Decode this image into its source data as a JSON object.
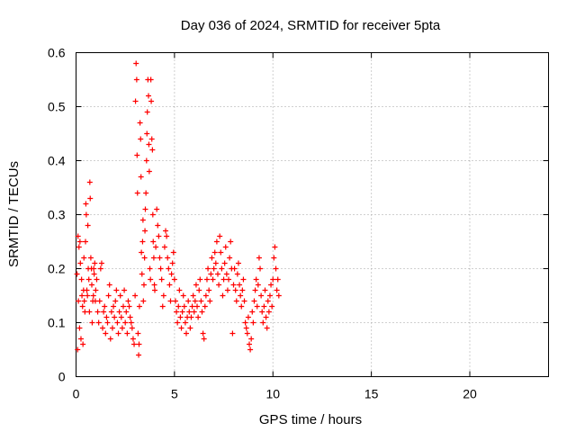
{
  "chart_data": {
    "type": "scatter",
    "title": "Day 036 of 2024, SRMTID for receiver 5pta",
    "xlabel": "GPS time / hours",
    "ylabel": "SRMTID / TECUs",
    "xlim": [
      0,
      24
    ],
    "ylim": [
      0,
      0.6
    ],
    "xticks": [
      0,
      5,
      10,
      15,
      20
    ],
    "xtick_labels": [
      "0",
      "5",
      "10",
      "15",
      "20"
    ],
    "yticks": [
      0,
      0.1,
      0.2,
      0.3,
      0.4,
      0.5,
      0.6
    ],
    "ytick_labels": [
      "0",
      "0.1",
      "0.2",
      "0.3",
      "0.4",
      "0.5",
      "0.6"
    ],
    "grid": true,
    "marker": "+",
    "color": "#ff0000",
    "series": [
      {
        "name": "SRMTID",
        "points": [
          [
            0.05,
            0.19
          ],
          [
            0.08,
            0.05
          ],
          [
            0.1,
            0.26
          ],
          [
            0.12,
            0.14
          ],
          [
            0.15,
            0.24
          ],
          [
            0.18,
            0.09
          ],
          [
            0.2,
            0.25
          ],
          [
            0.22,
            0.21
          ],
          [
            0.25,
            0.07
          ],
          [
            0.28,
            0.18
          ],
          [
            0.3,
            0.15
          ],
          [
            0.33,
            0.13
          ],
          [
            0.35,
            0.06
          ],
          [
            0.38,
            0.16
          ],
          [
            0.4,
            0.22
          ],
          [
            0.42,
            0.14
          ],
          [
            0.45,
            0.12
          ],
          [
            0.48,
            0.25
          ],
          [
            0.5,
            0.32
          ],
          [
            0.52,
            0.3
          ],
          [
            0.55,
            0.16
          ],
          [
            0.58,
            0.15
          ],
          [
            0.6,
            0.28
          ],
          [
            0.62,
            0.2
          ],
          [
            0.65,
            0.18
          ],
          [
            0.68,
            0.12
          ],
          [
            0.7,
            0.36
          ],
          [
            0.72,
            0.33
          ],
          [
            0.75,
            0.22
          ],
          [
            0.78,
            0.2
          ],
          [
            0.8,
            0.17
          ],
          [
            0.82,
            0.1
          ],
          [
            0.85,
            0.14
          ],
          [
            0.88,
            0.15
          ],
          [
            0.9,
            0.2
          ],
          [
            0.92,
            0.19
          ],
          [
            0.95,
            0.21
          ],
          [
            0.98,
            0.14
          ],
          [
            1.0,
            0.16
          ],
          [
            1.05,
            0.18
          ],
          [
            1.1,
            0.12
          ],
          [
            1.15,
            0.1
          ],
          [
            1.2,
            0.14
          ],
          [
            1.25,
            0.2
          ],
          [
            1.3,
            0.21
          ],
          [
            1.35,
            0.09
          ],
          [
            1.4,
            0.12
          ],
          [
            1.45,
            0.13
          ],
          [
            1.5,
            0.08
          ],
          [
            1.55,
            0.11
          ],
          [
            1.6,
            0.1
          ],
          [
            1.65,
            0.15
          ],
          [
            1.7,
            0.17
          ],
          [
            1.75,
            0.07
          ],
          [
            1.8,
            0.12
          ],
          [
            1.85,
            0.09
          ],
          [
            1.9,
            0.13
          ],
          [
            1.95,
            0.11
          ],
          [
            2.0,
            0.14
          ],
          [
            2.05,
            0.16
          ],
          [
            2.1,
            0.1
          ],
          [
            2.15,
            0.08
          ],
          [
            2.2,
            0.12
          ],
          [
            2.25,
            0.15
          ],
          [
            2.3,
            0.11
          ],
          [
            2.35,
            0.09
          ],
          [
            2.4,
            0.13
          ],
          [
            2.45,
            0.16
          ],
          [
            2.5,
            0.1
          ],
          [
            2.55,
            0.12
          ],
          [
            2.6,
            0.08
          ],
          [
            2.65,
            0.14
          ],
          [
            2.7,
            0.13
          ],
          [
            2.75,
            0.11
          ],
          [
            2.8,
            0.1
          ],
          [
            2.85,
            0.09
          ],
          [
            2.9,
            0.07
          ],
          [
            2.95,
            0.06
          ],
          [
            3.0,
            0.15
          ],
          [
            3.02,
            0.51
          ],
          [
            3.05,
            0.58
          ],
          [
            3.08,
            0.55
          ],
          [
            3.1,
            0.41
          ],
          [
            3.12,
            0.34
          ],
          [
            3.15,
            0.08
          ],
          [
            3.18,
            0.04
          ],
          [
            3.2,
            0.06
          ],
          [
            3.22,
            0.13
          ],
          [
            3.25,
            0.47
          ],
          [
            3.28,
            0.44
          ],
          [
            3.3,
            0.37
          ],
          [
            3.32,
            0.23
          ],
          [
            3.35,
            0.19
          ],
          [
            3.38,
            0.25
          ],
          [
            3.4,
            0.29
          ],
          [
            3.42,
            0.14
          ],
          [
            3.45,
            0.17
          ],
          [
            3.48,
            0.22
          ],
          [
            3.5,
            0.27
          ],
          [
            3.52,
            0.31
          ],
          [
            3.55,
            0.34
          ],
          [
            3.58,
            0.4
          ],
          [
            3.6,
            0.45
          ],
          [
            3.62,
            0.49
          ],
          [
            3.65,
            0.55
          ],
          [
            3.68,
            0.52
          ],
          [
            3.7,
            0.43
          ],
          [
            3.72,
            0.38
          ],
          [
            3.75,
            0.2
          ],
          [
            3.78,
            0.18
          ],
          [
            3.8,
            0.55
          ],
          [
            3.82,
            0.51
          ],
          [
            3.85,
            0.44
          ],
          [
            3.88,
            0.42
          ],
          [
            3.9,
            0.3
          ],
          [
            3.92,
            0.25
          ],
          [
            3.95,
            0.22
          ],
          [
            3.98,
            0.17
          ],
          [
            4.0,
            0.16
          ],
          [
            4.05,
            0.24
          ],
          [
            4.1,
            0.31
          ],
          [
            4.15,
            0.28
          ],
          [
            4.2,
            0.26
          ],
          [
            4.25,
            0.22
          ],
          [
            4.3,
            0.2
          ],
          [
            4.35,
            0.18
          ],
          [
            4.4,
            0.13
          ],
          [
            4.45,
            0.15
          ],
          [
            4.5,
            0.24
          ],
          [
            4.55,
            0.27
          ],
          [
            4.6,
            0.26
          ],
          [
            4.65,
            0.22
          ],
          [
            4.7,
            0.2
          ],
          [
            4.75,
            0.17
          ],
          [
            4.8,
            0.14
          ],
          [
            4.85,
            0.19
          ],
          [
            4.9,
            0.21
          ],
          [
            4.95,
            0.23
          ],
          [
            5.0,
            0.18
          ],
          [
            5.05,
            0.14
          ],
          [
            5.1,
            0.12
          ],
          [
            5.15,
            0.1
          ],
          [
            5.2,
            0.13
          ],
          [
            5.25,
            0.16
          ],
          [
            5.3,
            0.11
          ],
          [
            5.35,
            0.09
          ],
          [
            5.4,
            0.12
          ],
          [
            5.45,
            0.15
          ],
          [
            5.5,
            0.13
          ],
          [
            5.55,
            0.1
          ],
          [
            5.6,
            0.08
          ],
          [
            5.65,
            0.11
          ],
          [
            5.7,
            0.14
          ],
          [
            5.75,
            0.12
          ],
          [
            5.8,
            0.09
          ],
          [
            5.85,
            0.11
          ],
          [
            5.9,
            0.13
          ],
          [
            5.95,
            0.15
          ],
          [
            6.0,
            0.12
          ],
          [
            6.05,
            0.14
          ],
          [
            6.1,
            0.17
          ],
          [
            6.15,
            0.13
          ],
          [
            6.2,
            0.11
          ],
          [
            6.25,
            0.16
          ],
          [
            6.3,
            0.18
          ],
          [
            6.35,
            0.14
          ],
          [
            6.4,
            0.12
          ],
          [
            6.45,
            0.08
          ],
          [
            6.5,
            0.07
          ],
          [
            6.55,
            0.13
          ],
          [
            6.6,
            0.15
          ],
          [
            6.65,
            0.18
          ],
          [
            6.7,
            0.2
          ],
          [
            6.75,
            0.16
          ],
          [
            6.8,
            0.14
          ],
          [
            6.85,
            0.19
          ],
          [
            6.9,
            0.22
          ],
          [
            6.95,
            0.18
          ],
          [
            7.0,
            0.2
          ],
          [
            7.05,
            0.23
          ],
          [
            7.1,
            0.21
          ],
          [
            7.15,
            0.25
          ],
          [
            7.2,
            0.19
          ],
          [
            7.25,
            0.17
          ],
          [
            7.3,
            0.26
          ],
          [
            7.35,
            0.23
          ],
          [
            7.4,
            0.2
          ],
          [
            7.45,
            0.15
          ],
          [
            7.5,
            0.18
          ],
          [
            7.55,
            0.21
          ],
          [
            7.6,
            0.24
          ],
          [
            7.65,
            0.19
          ],
          [
            7.7,
            0.16
          ],
          [
            7.75,
            0.18
          ],
          [
            7.8,
            0.22
          ],
          [
            7.85,
            0.25
          ],
          [
            7.9,
            0.2
          ],
          [
            7.95,
            0.08
          ],
          [
            8.0,
            0.17
          ],
          [
            8.05,
            0.2
          ],
          [
            8.1,
            0.16
          ],
          [
            8.15,
            0.14
          ],
          [
            8.2,
            0.19
          ],
          [
            8.25,
            0.21
          ],
          [
            8.3,
            0.17
          ],
          [
            8.35,
            0.15
          ],
          [
            8.4,
            0.13
          ],
          [
            8.45,
            0.16
          ],
          [
            8.5,
            0.18
          ],
          [
            8.55,
            0.14
          ],
          [
            8.6,
            0.1
          ],
          [
            8.65,
            0.09
          ],
          [
            8.7,
            0.08
          ],
          [
            8.75,
            0.11
          ],
          [
            8.8,
            0.06
          ],
          [
            8.85,
            0.05
          ],
          [
            8.9,
            0.07
          ],
          [
            8.95,
            0.12
          ],
          [
            9.0,
            0.1
          ],
          [
            9.05,
            0.14
          ],
          [
            9.1,
            0.16
          ],
          [
            9.15,
            0.18
          ],
          [
            9.2,
            0.13
          ],
          [
            9.25,
            0.17
          ],
          [
            9.3,
            0.22
          ],
          [
            9.35,
            0.2
          ],
          [
            9.4,
            0.15
          ],
          [
            9.45,
            0.12
          ],
          [
            9.5,
            0.1
          ],
          [
            9.55,
            0.13
          ],
          [
            9.6,
            0.16
          ],
          [
            9.65,
            0.11
          ],
          [
            9.7,
            0.09
          ],
          [
            9.75,
            0.14
          ],
          [
            9.8,
            0.12
          ],
          [
            9.85,
            0.15
          ],
          [
            9.9,
            0.17
          ],
          [
            9.95,
            0.13
          ],
          [
            10.0,
            0.18
          ],
          [
            10.05,
            0.22
          ],
          [
            10.1,
            0.24
          ],
          [
            10.15,
            0.2
          ],
          [
            10.2,
            0.16
          ],
          [
            10.25,
            0.18
          ],
          [
            10.3,
            0.15
          ]
        ]
      }
    ]
  }
}
